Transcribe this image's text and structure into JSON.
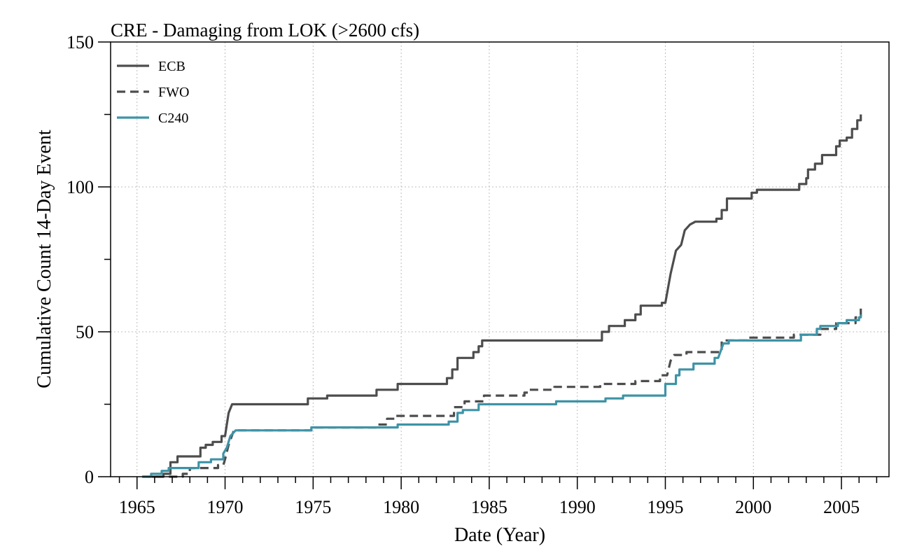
{
  "chart_data": {
    "type": "line",
    "title": "CRE - Damaging from LOK (>2600 cfs)",
    "xlabel": "Date (Year)",
    "ylabel": "Cumulative Count 14-Day Event",
    "xlim": [
      1963.5,
      2007.7
    ],
    "ylim": [
      0,
      150
    ],
    "x_ticks": [
      1965,
      1970,
      1975,
      1980,
      1985,
      1990,
      1995,
      2000,
      2005
    ],
    "y_ticks": [
      0,
      50,
      100,
      150
    ],
    "grid": true,
    "legend_position": "top-left",
    "series": [
      {
        "name": "ECB",
        "color": "#4d4d4d",
        "style": "solid",
        "points": [
          [
            1965.3,
            0
          ],
          [
            1966.5,
            0
          ],
          [
            1966.5,
            1
          ],
          [
            1966.9,
            1
          ],
          [
            1966.9,
            5
          ],
          [
            1967.3,
            5
          ],
          [
            1967.3,
            7
          ],
          [
            1968.6,
            7
          ],
          [
            1968.6,
            10
          ],
          [
            1968.9,
            10
          ],
          [
            1968.9,
            11
          ],
          [
            1969.3,
            11
          ],
          [
            1969.3,
            12
          ],
          [
            1969.8,
            12
          ],
          [
            1969.8,
            14
          ],
          [
            1970.0,
            14
          ],
          [
            1970.1,
            18
          ],
          [
            1970.2,
            22
          ],
          [
            1970.4,
            25
          ],
          [
            1974.7,
            25
          ],
          [
            1974.7,
            27
          ],
          [
            1975.8,
            27
          ],
          [
            1975.8,
            28
          ],
          [
            1978.6,
            28
          ],
          [
            1978.6,
            30
          ],
          [
            1979.8,
            30
          ],
          [
            1979.8,
            32
          ],
          [
            1982.6,
            32
          ],
          [
            1982.6,
            34
          ],
          [
            1982.9,
            34
          ],
          [
            1982.9,
            37
          ],
          [
            1983.2,
            37
          ],
          [
            1983.2,
            41
          ],
          [
            1984.1,
            41
          ],
          [
            1984.1,
            43
          ],
          [
            1984.4,
            43
          ],
          [
            1984.4,
            45
          ],
          [
            1984.6,
            45
          ],
          [
            1984.6,
            47
          ],
          [
            1991.4,
            47
          ],
          [
            1991.4,
            50
          ],
          [
            1991.8,
            50
          ],
          [
            1991.8,
            52
          ],
          [
            1992.7,
            52
          ],
          [
            1992.7,
            54
          ],
          [
            1993.3,
            54
          ],
          [
            1993.3,
            56
          ],
          [
            1993.6,
            56
          ],
          [
            1993.6,
            59
          ],
          [
            1994.8,
            59
          ],
          [
            1994.8,
            60
          ],
          [
            1995.0,
            60
          ],
          [
            1995.3,
            70
          ],
          [
            1995.6,
            78
          ],
          [
            1995.9,
            80
          ],
          [
            1996.1,
            85
          ],
          [
            1996.4,
            87
          ],
          [
            1996.7,
            88
          ],
          [
            1997.9,
            88
          ],
          [
            1997.9,
            89
          ],
          [
            1998.2,
            89
          ],
          [
            1998.2,
            92
          ],
          [
            1998.5,
            92
          ],
          [
            1998.5,
            96
          ],
          [
            1999.9,
            96
          ],
          [
            1999.9,
            98
          ],
          [
            2000.2,
            98
          ],
          [
            2000.2,
            99
          ],
          [
            2002.6,
            99
          ],
          [
            2002.6,
            101
          ],
          [
            2003.0,
            101
          ],
          [
            2003.0,
            103
          ],
          [
            2003.1,
            103
          ],
          [
            2003.1,
            106
          ],
          [
            2003.5,
            106
          ],
          [
            2003.5,
            108
          ],
          [
            2003.9,
            108
          ],
          [
            2003.9,
            111
          ],
          [
            2004.7,
            111
          ],
          [
            2004.7,
            114
          ],
          [
            2004.9,
            114
          ],
          [
            2004.9,
            116
          ],
          [
            2005.3,
            116
          ],
          [
            2005.3,
            117
          ],
          [
            2005.6,
            117
          ],
          [
            2005.6,
            120
          ],
          [
            2005.9,
            120
          ],
          [
            2005.9,
            123
          ],
          [
            2006.1,
            123
          ],
          [
            2006.1,
            125
          ]
        ]
      },
      {
        "name": "FWO",
        "color": "#4d4d4d",
        "style": "dashed",
        "points": [
          [
            1965.3,
            0
          ],
          [
            1967.6,
            0
          ],
          [
            1967.6,
            1
          ],
          [
            1968.0,
            1
          ],
          [
            1968.0,
            3
          ],
          [
            1969.6,
            3
          ],
          [
            1969.6,
            4
          ],
          [
            1969.9,
            4
          ],
          [
            1970.0,
            6
          ],
          [
            1970.2,
            11
          ],
          [
            1970.5,
            16
          ],
          [
            1974.9,
            16
          ],
          [
            1974.9,
            17
          ],
          [
            1978.7,
            17
          ],
          [
            1978.7,
            18
          ],
          [
            1979.2,
            18
          ],
          [
            1979.2,
            20
          ],
          [
            1979.7,
            20
          ],
          [
            1979.7,
            21
          ],
          [
            1983.0,
            21
          ],
          [
            1983.0,
            24
          ],
          [
            1983.6,
            24
          ],
          [
            1983.6,
            26
          ],
          [
            1984.7,
            26
          ],
          [
            1984.7,
            28
          ],
          [
            1987.0,
            28
          ],
          [
            1987.0,
            29
          ],
          [
            1987.3,
            29
          ],
          [
            1987.3,
            30
          ],
          [
            1988.7,
            30
          ],
          [
            1988.7,
            31
          ],
          [
            1991.3,
            31
          ],
          [
            1991.3,
            32
          ],
          [
            1993.3,
            32
          ],
          [
            1993.3,
            33
          ],
          [
            1994.7,
            33
          ],
          [
            1994.7,
            35
          ],
          [
            1995.1,
            35
          ],
          [
            1995.3,
            40
          ],
          [
            1995.5,
            42
          ],
          [
            1996.2,
            42
          ],
          [
            1996.2,
            43
          ],
          [
            1998.2,
            43
          ],
          [
            1998.2,
            47
          ],
          [
            1999.7,
            47
          ],
          [
            1999.7,
            48
          ],
          [
            2002.3,
            48
          ],
          [
            2002.3,
            49
          ],
          [
            2003.8,
            49
          ],
          [
            2003.8,
            51
          ],
          [
            2004.7,
            51
          ],
          [
            2004.7,
            53
          ],
          [
            2005.8,
            53
          ],
          [
            2005.8,
            55
          ],
          [
            2006.1,
            55
          ],
          [
            2006.1,
            58
          ]
        ]
      },
      {
        "name": "C240",
        "color": "#3e93a6",
        "style": "solid",
        "points": [
          [
            1965.3,
            0
          ],
          [
            1965.8,
            0
          ],
          [
            1965.8,
            1
          ],
          [
            1966.4,
            1
          ],
          [
            1966.4,
            2
          ],
          [
            1966.8,
            2
          ],
          [
            1966.8,
            3
          ],
          [
            1968.5,
            3
          ],
          [
            1968.5,
            5
          ],
          [
            1969.2,
            5
          ],
          [
            1969.2,
            6
          ],
          [
            1969.9,
            6
          ],
          [
            1969.9,
            8
          ],
          [
            1970.1,
            10
          ],
          [
            1970.3,
            14
          ],
          [
            1970.6,
            16
          ],
          [
            1974.9,
            16
          ],
          [
            1974.9,
            17
          ],
          [
            1979.8,
            17
          ],
          [
            1979.8,
            18
          ],
          [
            1982.7,
            18
          ],
          [
            1982.7,
            19
          ],
          [
            1983.2,
            19
          ],
          [
            1983.2,
            22
          ],
          [
            1983.5,
            22
          ],
          [
            1983.5,
            23
          ],
          [
            1984.4,
            23
          ],
          [
            1984.4,
            25
          ],
          [
            1988.8,
            25
          ],
          [
            1988.8,
            26
          ],
          [
            1991.6,
            26
          ],
          [
            1991.6,
            27
          ],
          [
            1992.6,
            27
          ],
          [
            1992.6,
            28
          ],
          [
            1995.0,
            28
          ],
          [
            1995.0,
            32
          ],
          [
            1995.6,
            32
          ],
          [
            1995.6,
            35
          ],
          [
            1995.8,
            35
          ],
          [
            1995.8,
            37
          ],
          [
            1996.6,
            37
          ],
          [
            1996.6,
            39
          ],
          [
            1997.8,
            39
          ],
          [
            1997.8,
            41
          ],
          [
            1998.0,
            41
          ],
          [
            1998.3,
            46
          ],
          [
            1998.6,
            46
          ],
          [
            1998.6,
            47
          ],
          [
            2002.7,
            47
          ],
          [
            2002.7,
            49
          ],
          [
            2003.6,
            49
          ],
          [
            2003.6,
            51
          ],
          [
            2003.8,
            51
          ],
          [
            2003.8,
            52
          ],
          [
            2004.8,
            52
          ],
          [
            2004.8,
            53
          ],
          [
            2005.3,
            53
          ],
          [
            2005.3,
            54
          ],
          [
            2006.0,
            54
          ],
          [
            2006.0,
            55
          ],
          [
            2006.1,
            55
          ],
          [
            2006.1,
            56
          ]
        ]
      }
    ]
  }
}
